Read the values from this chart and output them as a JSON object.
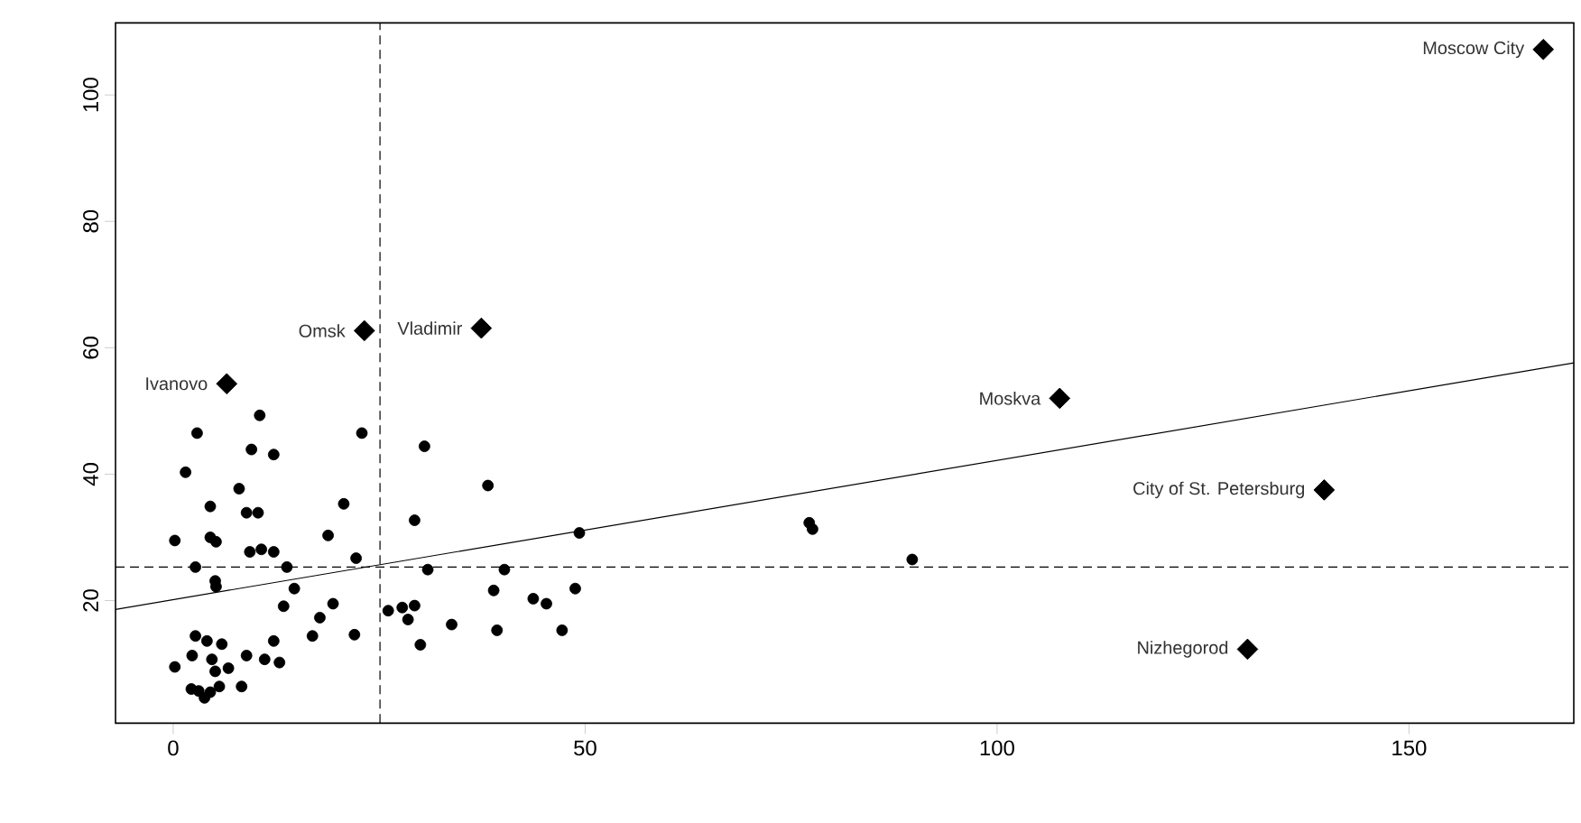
{
  "chart_data": {
    "type": "scatter",
    "xlim": [
      -7,
      170
    ],
    "ylim": [
      0.6,
      111.4
    ],
    "xticks": [
      0,
      50,
      100,
      150
    ],
    "yticks": [
      20,
      40,
      60,
      80,
      100
    ],
    "series": [
      {
        "marker": "circle",
        "color": "#000000",
        "x": [
          10.5,
          2.9,
          22.9,
          30.5,
          9.5,
          12.2,
          1.5,
          8.0,
          38.2,
          4.5,
          20.7,
          8.9,
          10.3,
          29.3,
          0.2,
          4.5,
          5.2,
          18.8,
          49.3,
          9.3,
          10.7,
          12.2,
          22.2,
          2.7,
          13.8,
          5.1,
          5.2,
          30.9,
          40.2,
          14.7,
          38.9,
          48.8,
          13.4,
          19.4,
          26.1,
          27.8,
          29.3,
          28.5,
          43.7,
          45.3,
          17.8,
          33.8,
          16.9,
          22.0,
          39.3,
          47.2,
          30.0,
          2.7,
          4.1,
          5.9,
          2.3,
          0.2,
          4.7,
          6.7,
          8.9,
          11.1,
          12.2,
          12.9,
          5.1,
          3.1,
          4.5,
          3.8,
          5.6,
          8.3,
          2.2,
          77.2,
          77.6,
          89.7
        ],
        "values": [
          49.3,
          46.5,
          46.5,
          44.4,
          43.9,
          43.1,
          40.3,
          37.7,
          38.2,
          34.9,
          35.3,
          33.9,
          33.9,
          32.7,
          29.5,
          30.0,
          29.3,
          30.3,
          30.7,
          27.7,
          28.1,
          27.7,
          26.7,
          25.3,
          25.3,
          23.1,
          22.2,
          24.9,
          24.9,
          21.9,
          21.6,
          21.9,
          19.1,
          19.5,
          18.4,
          18.9,
          19.2,
          17.0,
          20.3,
          19.5,
          17.3,
          16.2,
          14.4,
          14.6,
          15.3,
          15.3,
          13.0,
          14.4,
          13.6,
          13.1,
          11.3,
          9.5,
          10.7,
          9.3,
          11.3,
          10.7,
          13.6,
          10.2,
          8.8,
          5.7,
          5.5,
          4.6,
          6.4,
          6.4,
          6.0,
          32.3,
          31.3,
          26.5
        ]
      },
      {
        "marker": "diamond",
        "color": "#000000",
        "x": [
          166.3,
          107.6,
          139.7,
          130.4,
          23.2,
          37.4,
          6.5
        ],
        "values": [
          107.2,
          52.0,
          37.5,
          12.3,
          62.7,
          63.1,
          54.3
        ]
      },
      {
        "type": "line",
        "marker": "none",
        "line_style": "solid",
        "color": "#000000",
        "x": [
          -7,
          170
        ],
        "values": [
          18.6,
          57.6
        ]
      }
    ],
    "ref_lines": [
      {
        "axis": "x",
        "value": 25.1,
        "line_style": "dashed"
      },
      {
        "axis": "y",
        "value": 25.3,
        "line_style": "dashed"
      }
    ],
    "annotations": [
      {
        "text": "Moscow City",
        "x": 166.3,
        "y": 107.2
      },
      {
        "text": "Moskva",
        "x": 107.6,
        "y": 52.0
      },
      {
        "text": "City of St. Petersburg",
        "x": 139.7,
        "y": 37.5
      },
      {
        "text": "Nizhegorod",
        "x": 130.4,
        "y": 12.3
      },
      {
        "text": "Omsk",
        "x": 23.2,
        "y": 62.7
      },
      {
        "text": "Vladimir",
        "x": 37.4,
        "y": 63.1
      },
      {
        "text": "Ivanovo",
        "x": 6.5,
        "y": 54.3
      }
    ]
  }
}
